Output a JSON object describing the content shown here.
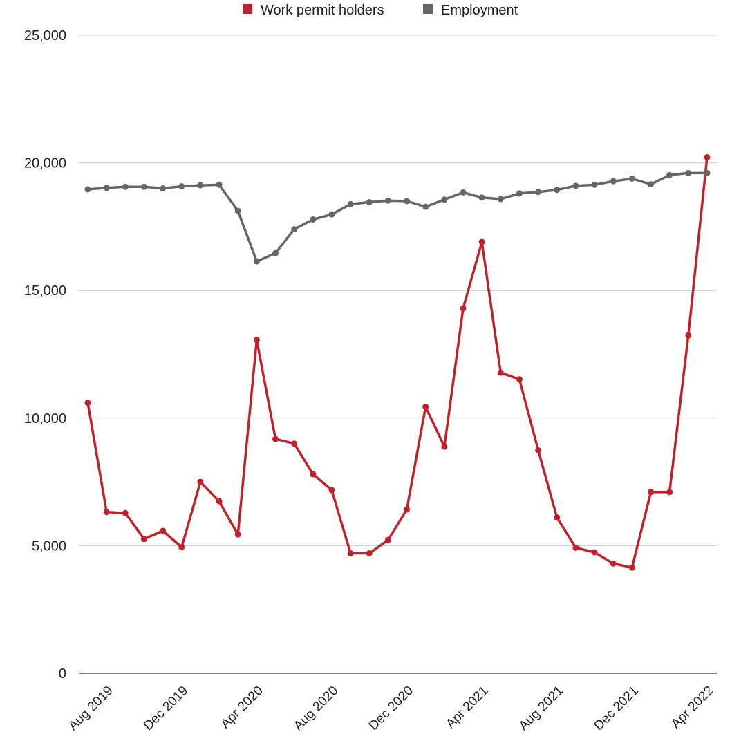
{
  "chart_data": {
    "type": "line",
    "x": [
      "Jul 2019",
      "Aug 2019",
      "Sep 2019",
      "Oct 2019",
      "Nov 2019",
      "Dec 2019",
      "Jan 2020",
      "Feb 2020",
      "Mar 2020",
      "Apr 2020",
      "May 2020",
      "Jun 2020",
      "Jul 2020",
      "Aug 2020",
      "Sep 2020",
      "Oct 2020",
      "Nov 2020",
      "Dec 2020",
      "Jan 2021",
      "Feb 2021",
      "Mar 2021",
      "Apr 2021",
      "May 2021",
      "Jun 2021",
      "Jul 2021",
      "Aug 2021",
      "Sep 2021",
      "Oct 2021",
      "Nov 2021",
      "Dec 2021",
      "Jan 2022",
      "Feb 2022",
      "Mar 2022",
      "Apr 2022"
    ],
    "x_tick_labels": [
      "Aug 2019",
      "Dec 2019",
      "Apr 2020",
      "Aug 2020",
      "Dec 2020",
      "Apr 2021",
      "Aug 2021",
      "Dec 2021",
      "Apr 2022"
    ],
    "x_tick_index": [
      1,
      5,
      9,
      13,
      17,
      21,
      25,
      29,
      33
    ],
    "y_ticks": [
      0,
      5000,
      10000,
      15000,
      20000,
      25000
    ],
    "y_tick_labels": [
      "0",
      "5,000",
      "10,000",
      "15,000",
      "20,000",
      "25,000"
    ],
    "ylim": [
      0,
      25000
    ],
    "grid": true,
    "legend_position": "top-center",
    "series": [
      {
        "name": "Work permit holders",
        "color": "#c0222b",
        "values": [
          10600,
          6320,
          6280,
          5260,
          5580,
          4940,
          7500,
          6740,
          5440,
          13060,
          9180,
          9000,
          7800,
          7180,
          4700,
          4700,
          5220,
          6420,
          10440,
          8880,
          14300,
          16900,
          11780,
          11520,
          8740,
          6100,
          4920,
          4740,
          4300,
          4140,
          7100,
          7100,
          13240,
          20220
        ]
      },
      {
        "name": "Employment",
        "color": "#666666",
        "values": [
          18960,
          19020,
          19060,
          19060,
          19000,
          19080,
          19120,
          19140,
          18120,
          16140,
          16460,
          17400,
          17780,
          17980,
          18380,
          18460,
          18520,
          18500,
          18280,
          18560,
          18840,
          18640,
          18580,
          18800,
          18860,
          18940,
          19100,
          19140,
          19280,
          19380,
          19160,
          19520,
          19600,
          19600
        ]
      }
    ]
  }
}
